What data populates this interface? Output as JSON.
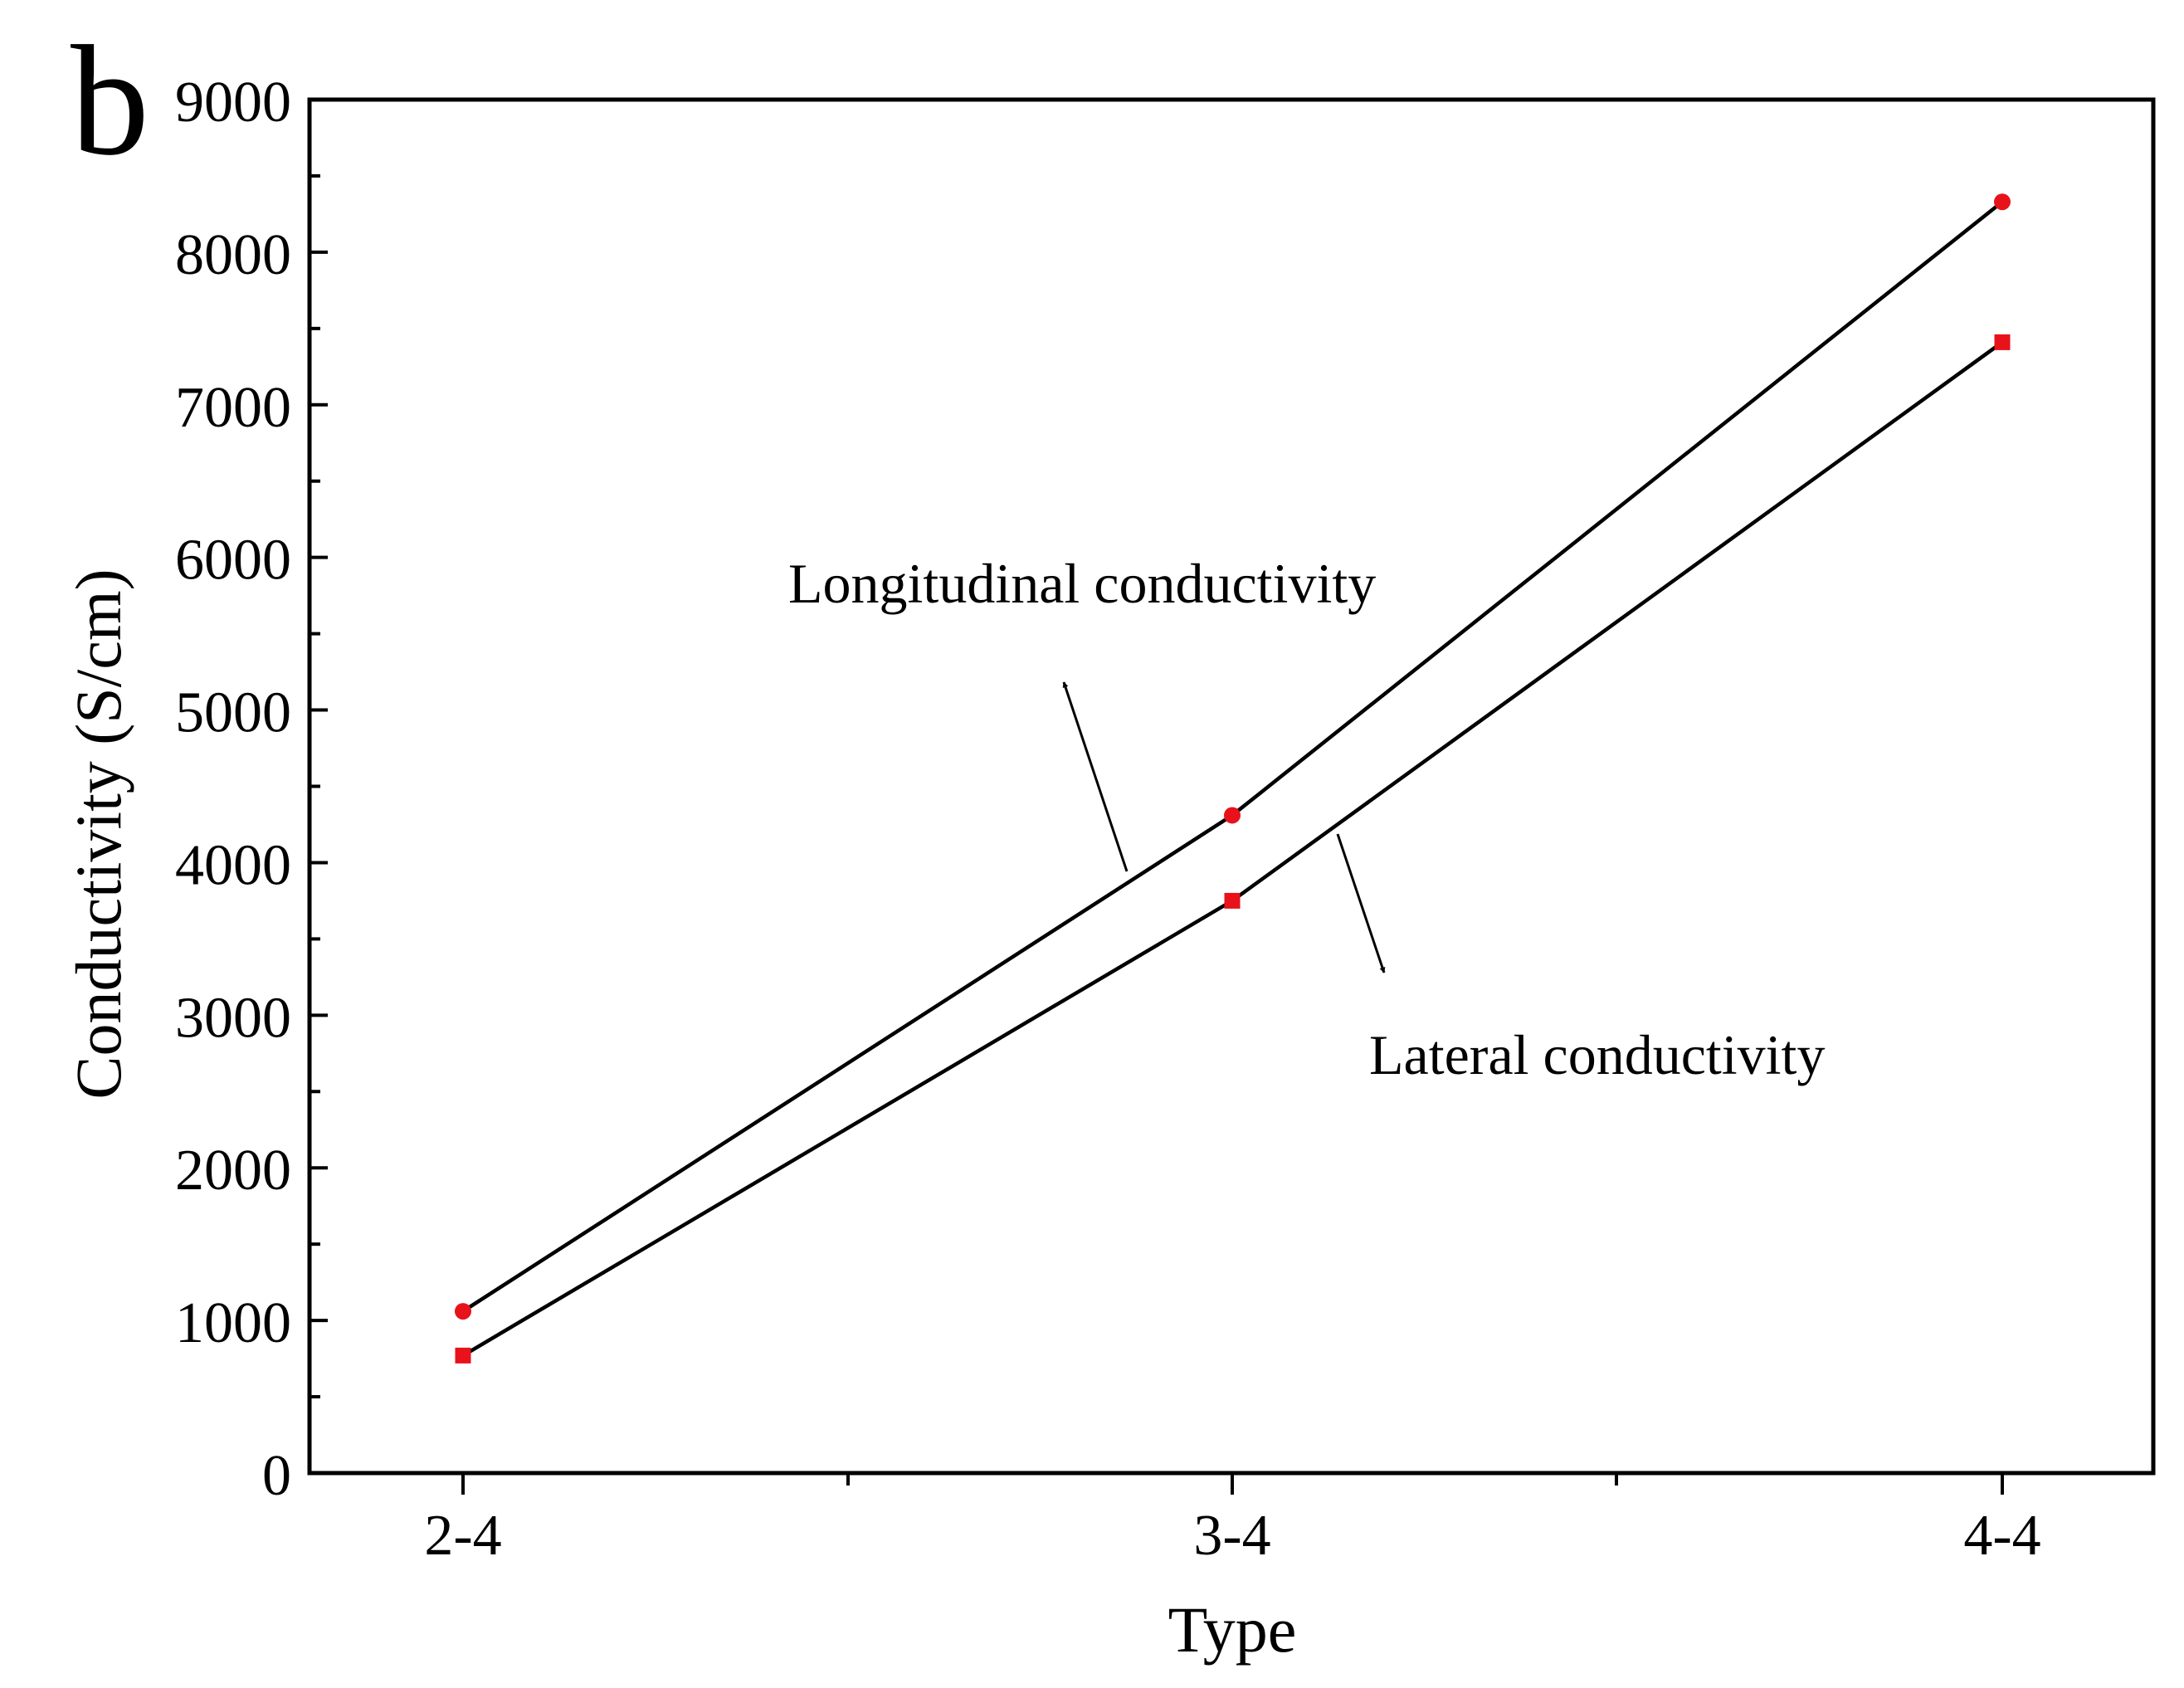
{
  "panel_label": "b",
  "chart_data": {
    "type": "line",
    "title": "",
    "xlabel": "Type",
    "ylabel": "Conductivity (S/cm)",
    "categories": [
      "2-4",
      "3-4",
      "4-4"
    ],
    "ylim": [
      0,
      9000
    ],
    "yticks": [
      0,
      1000,
      2000,
      3000,
      4000,
      5000,
      6000,
      7000,
      8000,
      9000
    ],
    "grid": false,
    "series": [
      {
        "name": "Longitudinal conductivity",
        "marker": "circle",
        "values": [
          1060,
          4310,
          8330
        ]
      },
      {
        "name": "Lateral conductivity",
        "marker": "square",
        "values": [
          770,
          3750,
          7410
        ]
      }
    ],
    "annotations": [
      {
        "text": "Longitudinal conductivity",
        "series": 0
      },
      {
        "text": "Lateral conductivity",
        "series": 1
      }
    ],
    "colors": {
      "line": "#000000",
      "marker": "#e8121b",
      "axis": "#000000"
    }
  }
}
